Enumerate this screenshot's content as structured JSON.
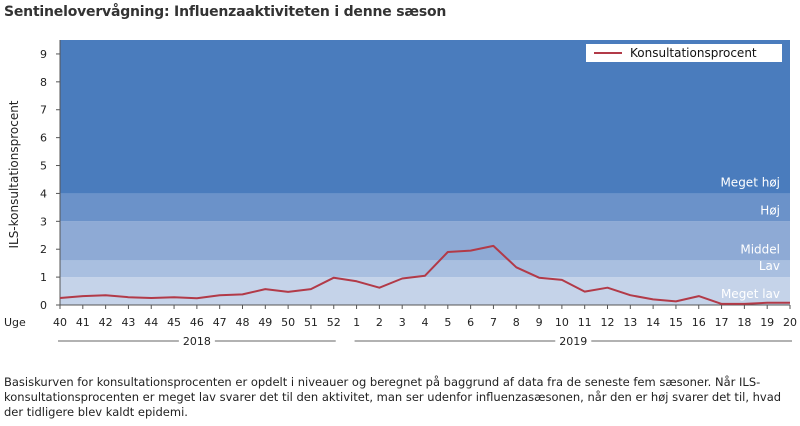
{
  "title": "Sentinelovervågning: Influenzaaktiviteten i denne sæson",
  "note": "Basiskurven for konsultationsprocenten er opdelt i niveauer og beregnet på baggrund af data fra de seneste fem sæsoner. Når ILS-konsultationsprocenten er meget lav svarer det til den aktivitet, man ser udenfor influenzasæsonen, når den er høj svarer det til, hvad der tidligere blev kaldt epidemi.",
  "chart_data": {
    "type": "line",
    "title": "Sentinelovervågning: Influenzaaktiviteten i denne sæson",
    "xlabel": "Uge",
    "ylabel": "ILS-konsultationsprocent",
    "ylim": [
      0,
      9.5
    ],
    "yticks": [
      0,
      1,
      2,
      3,
      4,
      5,
      6,
      7,
      8,
      9
    ],
    "categories": [
      "40",
      "41",
      "42",
      "43",
      "44",
      "45",
      "46",
      "47",
      "48",
      "49",
      "50",
      "51",
      "52",
      "1",
      "2",
      "3",
      "4",
      "5",
      "6",
      "7",
      "8",
      "9",
      "10",
      "11",
      "12",
      "13",
      "14",
      "15",
      "16",
      "17",
      "18",
      "19",
      "20"
    ],
    "year_groups": [
      {
        "label": "2018",
        "from": "40",
        "to": "52"
      },
      {
        "label": "2019",
        "from": "1",
        "to": "20"
      }
    ],
    "bands": [
      {
        "label": "Meget lav",
        "from": 0,
        "to": 1.0,
        "color": "#c5d3e9"
      },
      {
        "label": "Lav",
        "from": 1.0,
        "to": 1.6,
        "color": "#a9bfe0"
      },
      {
        "label": "Middel",
        "from": 1.6,
        "to": 3.0,
        "color": "#8eaad5"
      },
      {
        "label": "Høj",
        "from": 3.0,
        "to": 4.0,
        "color": "#6b92c9"
      },
      {
        "label": "Meget høj",
        "from": 4.0,
        "to": 9.5,
        "color": "#4a7cbd"
      }
    ],
    "series": [
      {
        "name": "Konsultationsprocent",
        "color": "#b23a48",
        "values": [
          0.25,
          0.32,
          0.35,
          0.28,
          0.25,
          0.28,
          0.24,
          0.35,
          0.38,
          0.57,
          0.47,
          0.57,
          0.98,
          0.85,
          0.62,
          0.95,
          1.05,
          1.9,
          1.95,
          2.12,
          1.35,
          0.98,
          0.9,
          0.48,
          0.62,
          0.35,
          0.2,
          0.13,
          0.32,
          0.04,
          0.04,
          0.08,
          0.08
        ]
      }
    ],
    "legend_position": "top-right",
    "grid": false
  }
}
